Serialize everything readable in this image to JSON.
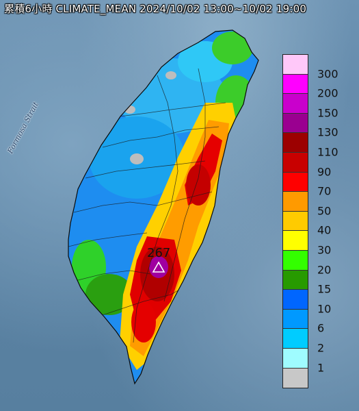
{
  "title": "累積6小時 CLIMATE_MEAN 2024/10/02 13:00~10/02 19:00",
  "sea_label": "Formosa Strait",
  "max_marker": {
    "label": "267"
  },
  "legend": [
    {
      "value": "300",
      "color": "#ffc8f9"
    },
    {
      "value": "200",
      "color": "#ff00ff"
    },
    {
      "value": "150",
      "color": "#c900cc"
    },
    {
      "value": "130",
      "color": "#9a0090"
    },
    {
      "value": "110",
      "color": "#9c0000"
    },
    {
      "value": "90",
      "color": "#c80000"
    },
    {
      "value": "70",
      "color": "#ff0000"
    },
    {
      "value": "50",
      "color": "#ff9a00"
    },
    {
      "value": "40",
      "color": "#ffcb00"
    },
    {
      "value": "30",
      "color": "#ffff00"
    },
    {
      "value": "20",
      "color": "#33ff00"
    },
    {
      "value": "15",
      "color": "#279a00"
    },
    {
      "value": "10",
      "color": "#0066ff"
    },
    {
      "value": "6",
      "color": "#0099ff"
    },
    {
      "value": "2",
      "color": "#00ccff"
    },
    {
      "value": "1",
      "color": "#9ffcff"
    },
    {
      "value": "",
      "color": "#c8c8c8"
    }
  ]
}
